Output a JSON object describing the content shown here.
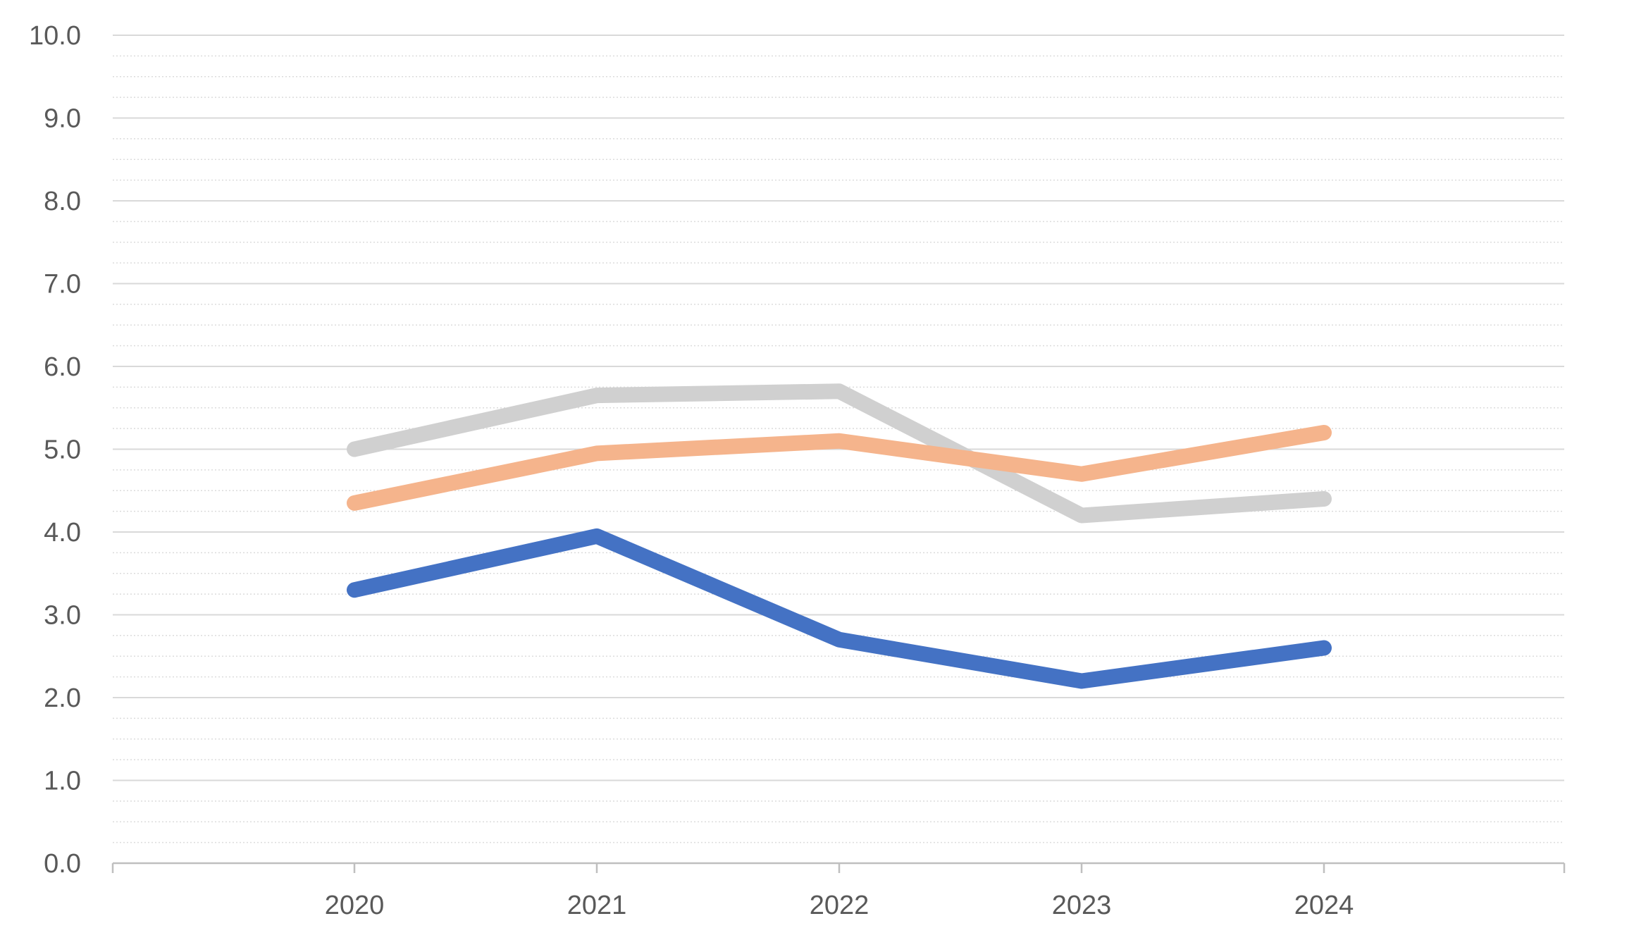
{
  "chart_data": {
    "type": "line",
    "title": "",
    "xlabel": "",
    "ylabel": "",
    "categories": [
      "2020",
      "2021",
      "2022",
      "2023",
      "2024"
    ],
    "ylim": [
      0,
      10
    ],
    "yticks": [
      "0.0",
      "1.0",
      "2.0",
      "3.0",
      "4.0",
      "5.0",
      "6.0",
      "7.0",
      "8.0",
      "9.0",
      "10.0"
    ],
    "grid": {
      "major": true,
      "minor_dotted": true
    },
    "legend": "none",
    "series": [
      {
        "color": "#d0d0d0",
        "values": [
          5.0,
          5.65,
          5.7,
          4.2,
          4.4
        ]
      },
      {
        "color": "#f5b48c",
        "values": [
          4.35,
          4.95,
          5.1,
          4.7,
          5.2
        ]
      },
      {
        "color": "#4472c4",
        "values": [
          3.3,
          3.95,
          2.7,
          2.2,
          2.6
        ]
      }
    ]
  }
}
